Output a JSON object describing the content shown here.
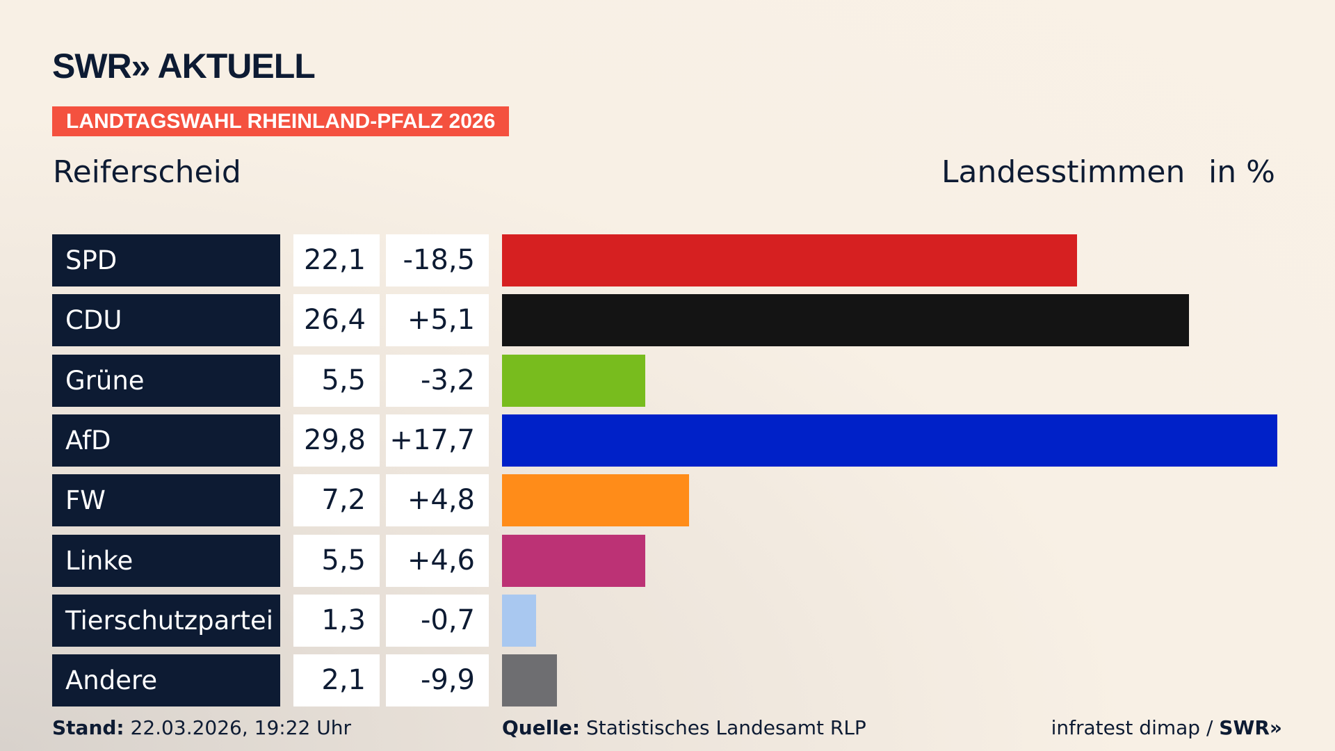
{
  "header": {
    "logo": "SWR» AKTUELL",
    "banner": "LANDTAGSWAHL RHEINLAND-PFALZ 2026",
    "location": "Reiferscheid",
    "measure": "Landesstimmen",
    "unit": "in %"
  },
  "chart_data": {
    "type": "bar",
    "orientation": "horizontal",
    "categories": [
      "SPD",
      "CDU",
      "Grüne",
      "AfD",
      "FW",
      "Linke",
      "Tierschutzpartei",
      "Andere"
    ],
    "values_label": [
      "22,1",
      "26,4",
      "5,5",
      "29,8",
      "7,2",
      "5,5",
      "1,3",
      "2,1"
    ],
    "diff_label": [
      "-18,5",
      "+5,1",
      "-3,2",
      "+17,7",
      "+4,8",
      "+4,6",
      "-0,7",
      "-9,9"
    ],
    "values": [
      22.1,
      26.4,
      5.5,
      29.8,
      7.2,
      5.5,
      1.3,
      2.1
    ],
    "diffs": [
      -18.5,
      5.1,
      -3.2,
      17.7,
      4.8,
      4.6,
      -0.7,
      -9.9
    ],
    "colors": [
      "#d62021",
      "#141414",
      "#78bc1e",
      "#0021c8",
      "#ff8c19",
      "#bc3275",
      "#a9c8f0",
      "#6e6e71"
    ],
    "xlim": [
      0,
      29.8
    ],
    "grid": false
  },
  "footer": {
    "stand_label": "Stand:",
    "stand": "22.03.2026, 19:22 Uhr",
    "source_label": "Quelle:",
    "source": "Statistisches Landesamt RLP",
    "credit": "infratest dimap / ",
    "credit_logo": "SWR»"
  }
}
